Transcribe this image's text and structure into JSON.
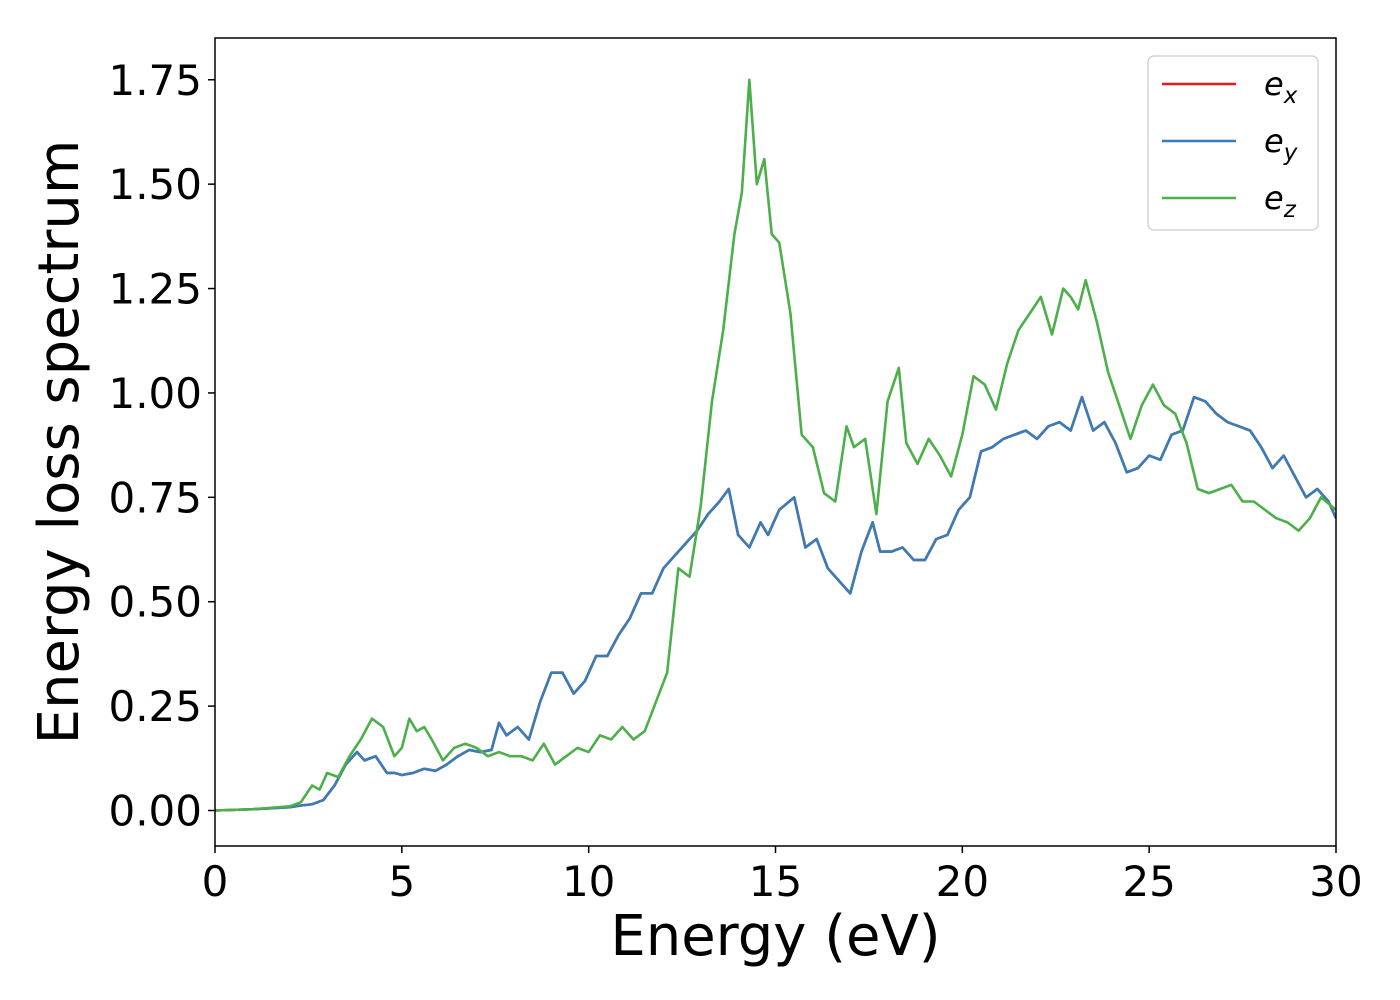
{
  "chart_data": {
    "type": "line",
    "title": "",
    "xlabel": "Energy (eV)",
    "ylabel": "Energy loss spectrum",
    "xlim": [
      0,
      30
    ],
    "ylim": [
      -0.085,
      1.85
    ],
    "xticks": [
      0,
      5,
      10,
      15,
      20,
      25,
      30
    ],
    "xtick_labels": [
      "0",
      "5",
      "10",
      "15",
      "20",
      "25",
      "30"
    ],
    "yticks": [
      0,
      0.25,
      0.5,
      0.75,
      1.0,
      1.25,
      1.5,
      1.75
    ],
    "ytick_labels": [
      "0.00",
      "0.25",
      "0.50",
      "0.75",
      "1.00",
      "1.25",
      "1.50",
      "1.75"
    ],
    "grid": false,
    "legend_position": "top-right",
    "series": [
      {
        "name": "e_x",
        "label_base": "e",
        "label_sub": "x",
        "color": "#e41a1c",
        "x": [
          0,
          1,
          2,
          2.3,
          2.6,
          2.9,
          3.2,
          3.5,
          3.8,
          4.0,
          4.3,
          4.6,
          4.8,
          5.0,
          5.3,
          5.6,
          5.9,
          6.2,
          6.5,
          6.8,
          7.1,
          7.4,
          7.6,
          7.8,
          8.1,
          8.4,
          8.7,
          9.0,
          9.3,
          9.6,
          9.9,
          10.2,
          10.5,
          10.8,
          11.1,
          11.4,
          11.7,
          12.0,
          12.3,
          12.6,
          12.9,
          13.2,
          13.5,
          13.75,
          14.0,
          14.3,
          14.6,
          14.8,
          15.1,
          15.5,
          15.8,
          16.1,
          16.4,
          16.7,
          17.0,
          17.3,
          17.6,
          17.8,
          18.1,
          18.4,
          18.7,
          19.0,
          19.3,
          19.6,
          19.9,
          20.2,
          20.5,
          20.8,
          21.1,
          21.4,
          21.7,
          22.0,
          22.3,
          22.6,
          22.9,
          23.2,
          23.5,
          23.8,
          24.1,
          24.4,
          24.7,
          25.0,
          25.3,
          25.6,
          25.9,
          26.2,
          26.5,
          26.8,
          27.1,
          27.4,
          27.7,
          28.0,
          28.3,
          28.6,
          28.9,
          29.2,
          29.5,
          29.8,
          30.0
        ],
        "values": [
          0.0,
          0.003,
          0.008,
          0.012,
          0.015,
          0.025,
          0.06,
          0.11,
          0.14,
          0.12,
          0.13,
          0.09,
          0.09,
          0.085,
          0.09,
          0.1,
          0.095,
          0.11,
          0.13,
          0.145,
          0.14,
          0.145,
          0.21,
          0.18,
          0.2,
          0.17,
          0.26,
          0.33,
          0.33,
          0.28,
          0.31,
          0.37,
          0.37,
          0.42,
          0.46,
          0.52,
          0.52,
          0.58,
          0.61,
          0.64,
          0.67,
          0.71,
          0.74,
          0.77,
          0.66,
          0.63,
          0.69,
          0.66,
          0.72,
          0.75,
          0.63,
          0.65,
          0.58,
          0.55,
          0.52,
          0.62,
          0.69,
          0.62,
          0.62,
          0.63,
          0.6,
          0.6,
          0.65,
          0.66,
          0.72,
          0.75,
          0.86,
          0.87,
          0.89,
          0.9,
          0.91,
          0.89,
          0.92,
          0.93,
          0.91,
          0.99,
          0.91,
          0.93,
          0.88,
          0.81,
          0.82,
          0.85,
          0.84,
          0.9,
          0.91,
          0.99,
          0.98,
          0.95,
          0.93,
          0.92,
          0.91,
          0.87,
          0.82,
          0.85,
          0.8,
          0.75,
          0.77,
          0.74,
          0.7
        ]
      },
      {
        "name": "e_y",
        "label_base": "e",
        "label_sub": "y",
        "color": "#377eb8",
        "x": [
          0,
          1,
          2,
          2.3,
          2.6,
          2.9,
          3.2,
          3.5,
          3.8,
          4.0,
          4.3,
          4.6,
          4.8,
          5.0,
          5.3,
          5.6,
          5.9,
          6.2,
          6.5,
          6.8,
          7.1,
          7.4,
          7.6,
          7.8,
          8.1,
          8.4,
          8.7,
          9.0,
          9.3,
          9.6,
          9.9,
          10.2,
          10.5,
          10.8,
          11.1,
          11.4,
          11.7,
          12.0,
          12.3,
          12.6,
          12.9,
          13.2,
          13.5,
          13.75,
          14.0,
          14.3,
          14.6,
          14.8,
          15.1,
          15.5,
          15.8,
          16.1,
          16.4,
          16.7,
          17.0,
          17.3,
          17.6,
          17.8,
          18.1,
          18.4,
          18.7,
          19.0,
          19.3,
          19.6,
          19.9,
          20.2,
          20.5,
          20.8,
          21.1,
          21.4,
          21.7,
          22.0,
          22.3,
          22.6,
          22.9,
          23.2,
          23.5,
          23.8,
          24.1,
          24.4,
          24.7,
          25.0,
          25.3,
          25.6,
          25.9,
          26.2,
          26.5,
          26.8,
          27.1,
          27.4,
          27.7,
          28.0,
          28.3,
          28.6,
          28.9,
          29.2,
          29.5,
          29.8,
          30.0
        ],
        "values": [
          0.0,
          0.003,
          0.008,
          0.012,
          0.015,
          0.025,
          0.06,
          0.11,
          0.14,
          0.12,
          0.13,
          0.09,
          0.09,
          0.085,
          0.09,
          0.1,
          0.095,
          0.11,
          0.13,
          0.145,
          0.14,
          0.145,
          0.21,
          0.18,
          0.2,
          0.17,
          0.26,
          0.33,
          0.33,
          0.28,
          0.31,
          0.37,
          0.37,
          0.42,
          0.46,
          0.52,
          0.52,
          0.58,
          0.61,
          0.64,
          0.67,
          0.71,
          0.74,
          0.77,
          0.66,
          0.63,
          0.69,
          0.66,
          0.72,
          0.75,
          0.63,
          0.65,
          0.58,
          0.55,
          0.52,
          0.62,
          0.69,
          0.62,
          0.62,
          0.63,
          0.6,
          0.6,
          0.65,
          0.66,
          0.72,
          0.75,
          0.86,
          0.87,
          0.89,
          0.9,
          0.91,
          0.89,
          0.92,
          0.93,
          0.91,
          0.99,
          0.91,
          0.93,
          0.88,
          0.81,
          0.82,
          0.85,
          0.84,
          0.9,
          0.91,
          0.99,
          0.98,
          0.95,
          0.93,
          0.92,
          0.91,
          0.87,
          0.82,
          0.85,
          0.8,
          0.75,
          0.77,
          0.74,
          0.7
        ]
      },
      {
        "name": "e_z",
        "label_base": "e",
        "label_sub": "z",
        "color": "#4daf4a",
        "x": [
          0,
          1,
          2,
          2.3,
          2.6,
          2.8,
          3.0,
          3.3,
          3.6,
          3.9,
          4.2,
          4.5,
          4.8,
          5.0,
          5.2,
          5.4,
          5.6,
          5.8,
          6.1,
          6.4,
          6.7,
          7.0,
          7.3,
          7.6,
          7.9,
          8.2,
          8.5,
          8.8,
          9.1,
          9.4,
          9.7,
          10.0,
          10.3,
          10.6,
          10.9,
          11.2,
          11.5,
          11.8,
          12.1,
          12.4,
          12.7,
          13.0,
          13.3,
          13.6,
          13.9,
          14.1,
          14.3,
          14.5,
          14.7,
          14.9,
          15.1,
          15.4,
          15.7,
          16.0,
          16.3,
          16.6,
          16.9,
          17.1,
          17.4,
          17.7,
          18.0,
          18.3,
          18.5,
          18.8,
          19.1,
          19.4,
          19.7,
          20.0,
          20.3,
          20.6,
          20.9,
          21.2,
          21.5,
          21.8,
          22.1,
          22.4,
          22.7,
          22.9,
          23.1,
          23.3,
          23.6,
          23.9,
          24.2,
          24.5,
          24.8,
          25.1,
          25.4,
          25.7,
          26.0,
          26.3,
          26.6,
          26.9,
          27.2,
          27.5,
          27.8,
          28.1,
          28.4,
          28.7,
          29.0,
          29.3,
          29.6,
          30.0
        ],
        "values": [
          0.0,
          0.003,
          0.01,
          0.02,
          0.06,
          0.05,
          0.09,
          0.08,
          0.13,
          0.17,
          0.22,
          0.2,
          0.13,
          0.15,
          0.22,
          0.19,
          0.2,
          0.17,
          0.12,
          0.15,
          0.16,
          0.15,
          0.13,
          0.14,
          0.13,
          0.13,
          0.12,
          0.16,
          0.11,
          0.13,
          0.15,
          0.14,
          0.18,
          0.17,
          0.2,
          0.17,
          0.19,
          0.26,
          0.33,
          0.58,
          0.56,
          0.73,
          0.98,
          1.15,
          1.38,
          1.48,
          1.75,
          1.5,
          1.56,
          1.38,
          1.36,
          1.19,
          0.9,
          0.87,
          0.76,
          0.74,
          0.92,
          0.87,
          0.89,
          0.71,
          0.98,
          1.06,
          0.88,
          0.83,
          0.89,
          0.85,
          0.8,
          0.9,
          1.04,
          1.02,
          0.96,
          1.07,
          1.15,
          1.19,
          1.23,
          1.14,
          1.25,
          1.23,
          1.2,
          1.27,
          1.17,
          1.05,
          0.97,
          0.89,
          0.97,
          1.02,
          0.97,
          0.95,
          0.88,
          0.77,
          0.76,
          0.77,
          0.78,
          0.74,
          0.74,
          0.72,
          0.7,
          0.69,
          0.67,
          0.7,
          0.75,
          0.72
        ]
      }
    ]
  }
}
